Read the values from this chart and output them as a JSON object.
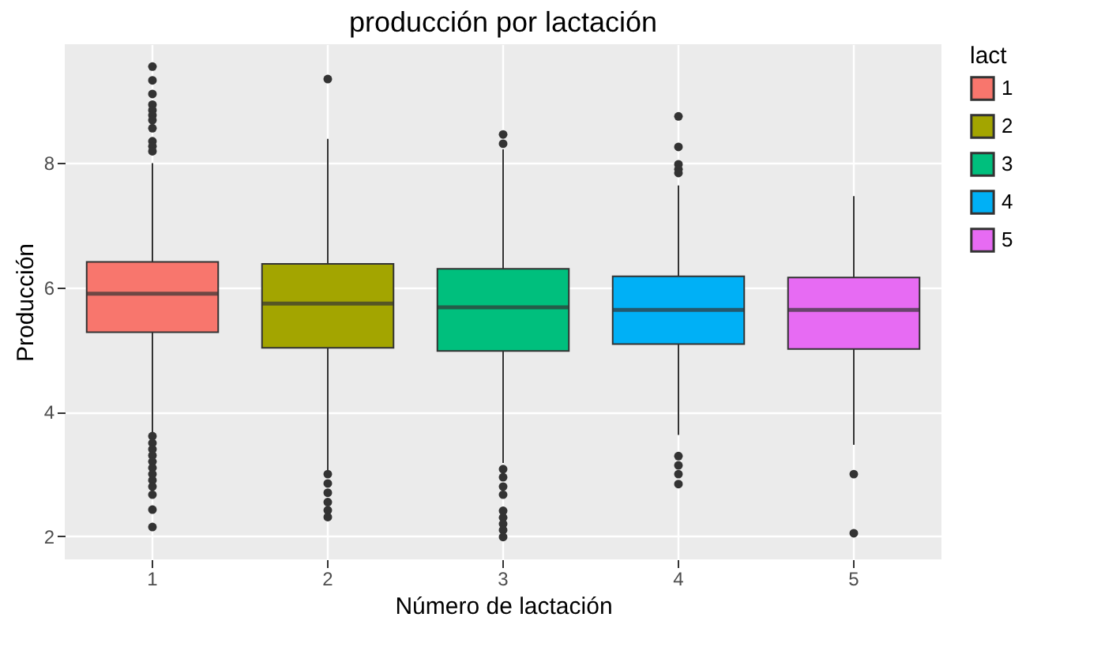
{
  "chart_data": {
    "type": "box",
    "title": "producción por lactación",
    "xlabel": "Número de lactación",
    "ylabel": "Producción",
    "legend_title": "lact",
    "categories": [
      "1",
      "2",
      "3",
      "4",
      "5"
    ],
    "series": [
      {
        "name": "1",
        "color": "#f8766d",
        "boxes": [
          {
            "low": 3.64,
            "q1": 5.28,
            "median": 5.9,
            "q3": 6.41,
            "high": 8.0,
            "outliers": [
              9.55,
              9.33,
              9.11,
              8.94,
              8.85,
              8.77,
              8.69,
              8.56,
              8.35,
              8.27,
              8.19,
              3.61,
              3.5,
              3.4,
              3.3,
              3.2,
              3.1,
              3.0,
              2.9,
              2.8,
              2.67,
              2.43,
              2.15
            ]
          },
          null,
          null,
          null,
          null
        ]
      },
      {
        "name": "2",
        "color": "#a3a500",
        "boxes": [
          null,
          {
            "low": 3.02,
            "q1": 5.03,
            "median": 5.74,
            "q3": 6.38,
            "high": 8.39,
            "outliers": [
              9.35,
              3.0,
              2.85,
              2.7,
              2.55,
              2.42,
              2.31
            ]
          },
          null,
          null,
          null
        ]
      },
      {
        "name": "3",
        "color": "#00bf7d",
        "boxes": [
          null,
          null,
          {
            "low": 3.18,
            "q1": 4.98,
            "median": 5.68,
            "q3": 6.3,
            "high": 8.22,
            "outliers": [
              8.46,
              8.31,
              3.08,
              2.95,
              2.8,
              2.67,
              2.41,
              2.3,
              2.2,
              2.1,
              1.99
            ]
          },
          null,
          null
        ]
      },
      {
        "name": "4",
        "color": "#00b0f6",
        "boxes": [
          null,
          null,
          null,
          {
            "low": 3.63,
            "q1": 5.09,
            "median": 5.64,
            "q3": 6.18,
            "high": 7.64,
            "outliers": [
              8.75,
              8.26,
              7.98,
              7.9,
              7.84,
              3.29,
              3.14,
              3.0,
              2.84
            ]
          },
          null
        ]
      },
      {
        "name": "5",
        "color": "#e76bf3",
        "boxes": [
          null,
          null,
          null,
          null,
          {
            "low": 3.47,
            "q1": 5.01,
            "median": 5.64,
            "q3": 6.16,
            "high": 7.47,
            "outliers": [
              3.0,
              2.05
            ]
          }
        ]
      }
    ],
    "ylim": [
      1.63,
      9.91
    ],
    "yticks": [
      2,
      4,
      6,
      8
    ],
    "grid": true,
    "legend": "right"
  }
}
